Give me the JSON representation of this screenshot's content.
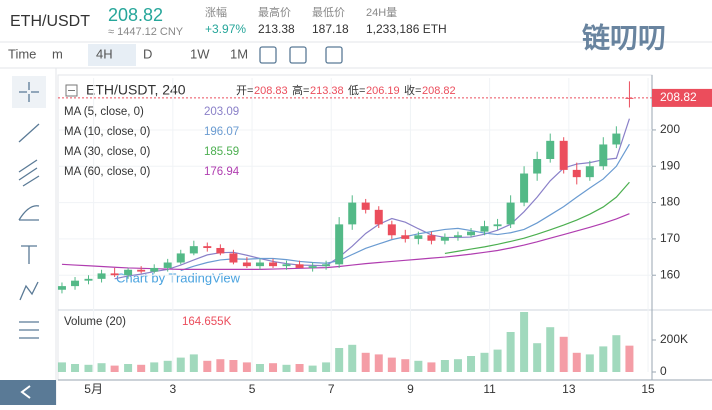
{
  "header": {
    "symbol": "ETH/USDT",
    "price": "208.82",
    "cny": "≈ 1447.12 CNY",
    "stats": [
      {
        "label": "涨幅",
        "value": "+3.97%"
      },
      {
        "label": "最高价",
        "value": "213.38"
      },
      {
        "label": "最低价",
        "value": "187.18"
      },
      {
        "label": "24H量",
        "value": "1,233,186 ETH"
      }
    ]
  },
  "toolbar": [
    "Time",
    "m",
    "4H",
    "D",
    "1W",
    "1M"
  ],
  "watermark": "链叨叨",
  "credit": "Chart by TradingView",
  "chart_data": {
    "type": "candlestick",
    "title": "ETH/USDT, 240",
    "ohlc_header": [
      {
        "label": "开=",
        "value": "208.83"
      },
      {
        "label": "高=",
        "value": "213.38"
      },
      {
        "label": "低=",
        "value": "206.19"
      },
      {
        "label": "收=",
        "value": "208.82"
      }
    ],
    "x": [
      0.2,
      0.53,
      0.87,
      1.2,
      1.53,
      1.87,
      2.2,
      2.53,
      2.87,
      3.2,
      3.53,
      3.87,
      4.2,
      4.53,
      4.87,
      5.2,
      5.53,
      5.87,
      6.2,
      6.53,
      6.87,
      7.2,
      7.53,
      7.87,
      8.2,
      8.53,
      8.87,
      9.2,
      9.53,
      9.87,
      10.2,
      10.53,
      10.87,
      11.2,
      11.53,
      11.87,
      12.2,
      12.53,
      12.87,
      13.2,
      13.53,
      13.87,
      14.2,
      14.53
    ],
    "open": [
      156,
      157,
      158.5,
      159,
      160.5,
      160,
      161.5,
      161,
      162,
      163.5,
      166,
      168,
      167.5,
      166,
      163.5,
      162.5,
      163.5,
      162.5,
      163,
      162,
      162.5,
      163,
      174,
      180,
      178,
      174,
      171,
      170,
      171,
      169.5,
      170.5,
      171,
      172,
      173.5,
      174,
      180,
      188,
      192,
      197,
      189,
      187,
      190,
      196,
      208.83
    ],
    "high": [
      158,
      159.5,
      160,
      161.5,
      162,
      162,
      162.5,
      163,
      164.5,
      167,
      169.5,
      169,
      168.5,
      167,
      165,
      164.5,
      164.5,
      164,
      164,
      163.5,
      164,
      176,
      182,
      181,
      179,
      175,
      172.5,
      172,
      172,
      171.5,
      172,
      173,
      175,
      175.5,
      182,
      190,
      194,
      199,
      198,
      191,
      191.5,
      198,
      201,
      213.38
    ],
    "low": [
      155,
      156,
      157.5,
      158,
      159.5,
      159,
      160.5,
      160.5,
      161,
      163,
      165.5,
      166.5,
      165.5,
      163,
      162,
      161.5,
      162,
      161.5,
      162,
      161,
      161.5,
      162,
      172.5,
      177,
      173,
      170,
      169,
      168.5,
      168.5,
      168.5,
      169.5,
      170.5,
      171,
      172.5,
      173,
      179,
      186,
      191,
      188,
      185,
      186,
      189,
      195,
      206.19
    ],
    "close": [
      157,
      158.5,
      159,
      160.5,
      160,
      161.5,
      161,
      162,
      163.5,
      166,
      168,
      167.5,
      166,
      163.5,
      162.5,
      163.5,
      162.5,
      163,
      162,
      162.5,
      163,
      174,
      180,
      178,
      174,
      171,
      170,
      171,
      169.5,
      170.5,
      171,
      172,
      173.5,
      174,
      180,
      188,
      192,
      197,
      189,
      187,
      190,
      196,
      199,
      208.82
    ],
    "up_color": "#53b987",
    "down_color": "#eb4d5c",
    "xlim": [
      0.1,
      15.1
    ],
    "xticks": [
      {
        "value": 1,
        "label": "5月"
      },
      3,
      5,
      7,
      9,
      11,
      13,
      15
    ],
    "ylim": [
      151.8,
      214.3
    ],
    "yticks": [
      160,
      170,
      180,
      190,
      200
    ],
    "ma": [
      {
        "name": "MA (5, close, 0)",
        "color": "#8a80c8",
        "values": [
          null,
          null,
          null,
          null,
          159,
          159.8,
          160.3,
          161,
          161.6,
          162.8,
          164.2,
          165.6,
          166.2,
          166.3,
          165.5,
          164.6,
          163.8,
          163.2,
          162.8,
          162.7,
          162.6,
          165,
          168,
          171.5,
          174,
          175.6,
          174.6,
          172.8,
          171.1,
          170.4,
          170.4,
          170.5,
          171.3,
          172.4,
          174,
          177.5,
          181.5,
          186,
          189.5,
          190.6,
          191,
          191.8,
          192.2,
          203.09
        ]
      },
      {
        "name": "MA (10, close, 0)",
        "color": "#6a9bd1",
        "values": [
          null,
          null,
          null,
          null,
          null,
          null,
          null,
          null,
          null,
          161.3,
          162.5,
          163.5,
          164.2,
          164.5,
          164.4,
          164.6,
          164.6,
          164.3,
          163.8,
          163.5,
          163.3,
          164,
          165.7,
          167.4,
          168.6,
          169.8,
          170.6,
          171.4,
          172,
          172.6,
          172.9,
          172.3,
          171.6,
          171.2,
          171.7,
          172.6,
          174.4,
          176.6,
          178.9,
          181.5,
          184,
          186.5,
          190,
          196.07
        ]
      },
      {
        "name": "MA (30, close, 0)",
        "color": "#4caf50",
        "values": [
          null,
          null,
          null,
          null,
          null,
          null,
          null,
          null,
          null,
          null,
          null,
          null,
          null,
          null,
          null,
          null,
          null,
          null,
          null,
          null,
          null,
          null,
          null,
          null,
          null,
          null,
          null,
          null,
          null,
          166,
          166.6,
          167.2,
          167.8,
          168.5,
          169.3,
          170.2,
          171.3,
          172.5,
          173.8,
          175.2,
          176.8,
          178.8,
          181.5,
          185.59
        ]
      },
      {
        "name": "MA (60, close, 0)",
        "color": "#b03db0",
        "values": [
          163,
          162.8,
          162.6,
          162.4,
          162.2,
          162,
          161.9,
          161.8,
          161.7,
          161.6,
          161.6,
          161.6,
          161.6,
          161.6,
          161.6,
          161.6,
          161.7,
          161.8,
          161.9,
          162,
          162.1,
          162.4,
          162.8,
          163.2,
          163.5,
          163.8,
          164.1,
          164.4,
          164.7,
          165,
          165.4,
          165.8,
          166.3,
          166.8,
          167.5,
          168.3,
          169.2,
          170.2,
          171.2,
          172.2,
          173.2,
          174.3,
          175.5,
          176.94
        ]
      }
    ],
    "volume": {
      "name": "Volume (20)",
      "legend_value": "164.655K",
      "values": [
        60000,
        50000,
        45000,
        55000,
        40000,
        50000,
        45000,
        60000,
        70000,
        90000,
        110000,
        70000,
        80000,
        75000,
        60000,
        50000,
        55000,
        45000,
        50000,
        40000,
        60000,
        150000,
        170000,
        120000,
        110000,
        90000,
        80000,
        70000,
        60000,
        75000,
        80000,
        100000,
        120000,
        140000,
        250000,
        375000,
        180000,
        280000,
        220000,
        120000,
        110000,
        160000,
        230000,
        164655
      ],
      "ylim": [
        0,
        375000
      ],
      "yticks": [
        0,
        {
          "value": 200000,
          "label": "200K"
        }
      ]
    }
  }
}
